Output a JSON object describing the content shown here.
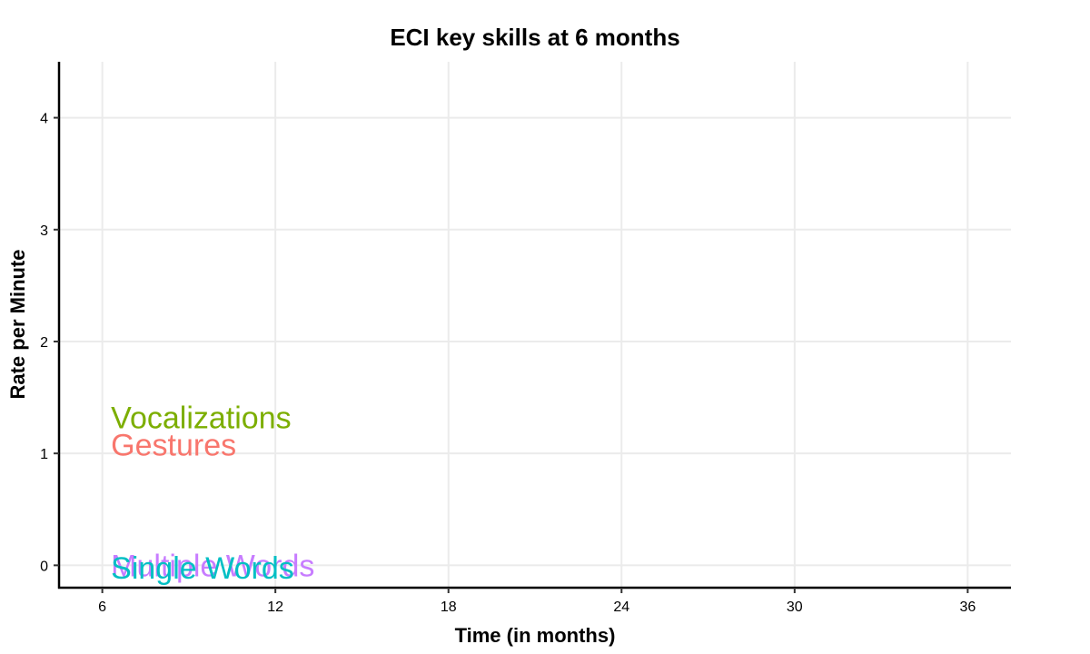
{
  "chart_data": {
    "type": "scatter",
    "title": "ECI key skills at 6 months",
    "xlabel": "Time (in months)",
    "ylabel": "Rate per Minute",
    "xlim": [
      4.5,
      37.5
    ],
    "ylim": [
      -0.2,
      4.5
    ],
    "x_ticks": [
      6,
      12,
      18,
      24,
      30,
      36
    ],
    "y_ticks": [
      0,
      1,
      2,
      3,
      4
    ],
    "grid": true,
    "series": [
      {
        "name": "Vocalizations",
        "color": "#7CAE00",
        "x": 6.3,
        "y": 1.32
      },
      {
        "name": "Gestures",
        "color": "#F8766D",
        "x": 6.3,
        "y": 1.08
      },
      {
        "name": "Multiple Words",
        "color": "#C77CFF",
        "x": 6.3,
        "y": 0.0
      },
      {
        "name": "Single Words",
        "color": "#00BFC4",
        "x": 6.3,
        "y": -0.02
      }
    ]
  }
}
